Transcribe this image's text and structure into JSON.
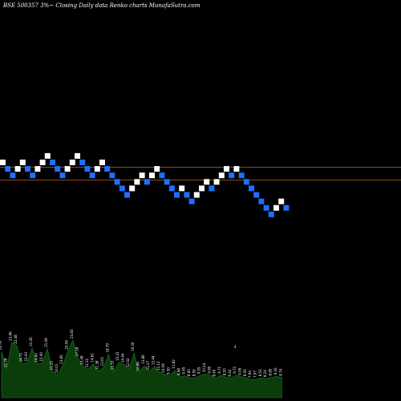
{
  "title": "BSE 500357 3%~ Closing Daily data Renko charts MunafaSutra.com",
  "colors": {
    "background": "#000000",
    "up_brick": "#ffffff",
    "down_brick": "#1e6fff",
    "guide_line": "#b5651d",
    "volume_fill": "#0b3d0b",
    "volume_edge": "#1f7a1f"
  },
  "chart_data": {
    "type": "renko",
    "title": "BSE 500357 3%~ Closing Daily data Renko charts MunafaSutra.com",
    "brick_steps": [
      0,
      -1,
      -2,
      -1,
      0,
      -1,
      -2,
      -1,
      0,
      1,
      0,
      -1,
      -2,
      -1,
      0,
      1,
      0,
      -1,
      -2,
      -1,
      0,
      -1,
      -2,
      -3,
      -4,
      -5,
      -4,
      -3,
      -2,
      -3,
      -2,
      -1,
      -2,
      -3,
      -4,
      -5,
      -4,
      -5,
      -6,
      -5,
      -4,
      -3,
      -4,
      -3,
      -2,
      -1,
      -2,
      -1,
      -2,
      -3,
      -4,
      -5,
      -6,
      -7,
      -8,
      -7,
      -6,
      -7
    ],
    "brick_directions": [
      "up",
      "down",
      "down",
      "up",
      "up",
      "down",
      "down",
      "up",
      "up",
      "up",
      "down",
      "down",
      "down",
      "up",
      "up",
      "up",
      "down",
      "down",
      "down",
      "up",
      "up",
      "down",
      "down",
      "down",
      "down",
      "down",
      "up",
      "up",
      "up",
      "down",
      "up",
      "up",
      "down",
      "down",
      "down",
      "down",
      "up",
      "down",
      "down",
      "up",
      "up",
      "up",
      "down",
      "up",
      "up",
      "up",
      "down",
      "up",
      "down",
      "down",
      "down",
      "down",
      "down",
      "down",
      "down",
      "up",
      "up",
      "down"
    ],
    "reference_levels": [
      -1,
      -3
    ],
    "volume_labels": [
      "19.79",
      "12.38",
      "23.86",
      "22.48",
      "14.71",
      "15.03",
      "21.45",
      "14.60",
      "15.00",
      "21.09",
      "11.25",
      "10.01",
      "13.85",
      "20.09",
      "24.83",
      "17.18",
      "13.49",
      "12.31",
      "14.61",
      "11.38",
      "13.01",
      "18.79",
      "11.33",
      "15.22",
      "14.44",
      "12.43",
      "19.30",
      "10.86",
      "13.86",
      "11.27",
      "13.44",
      "11.12",
      "10.09",
      "9.30",
      "11.82",
      "8.98",
      "9.45",
      "8.60",
      "8.55",
      "9.55",
      "10.24",
      "9.80",
      "8.45",
      "9.71",
      "8.93",
      "8.42",
      "9.72",
      "9.06",
      "8.55",
      "7.94",
      "7.97",
      "8.53",
      "8.24",
      "8.80",
      "9.20",
      "8.74"
    ],
    "volume_values": [
      19.79,
      12.38,
      23.86,
      22.48,
      14.71,
      15.03,
      21.45,
      14.6,
      15.0,
      21.09,
      11.25,
      10.01,
      13.85,
      20.09,
      24.83,
      17.18,
      13.49,
      12.31,
      14.61,
      11.38,
      13.01,
      18.79,
      11.33,
      15.22,
      14.44,
      12.43,
      19.3,
      10.86,
      13.86,
      11.27,
      13.44,
      11.12,
      10.09,
      9.3,
      11.82,
      8.98,
      9.45,
      8.6,
      8.55,
      9.55,
      10.24,
      9.8,
      8.45,
      9.71,
      8.93,
      8.42,
      9.72,
      9.06,
      8.55,
      7.94,
      7.97,
      8.53,
      8.24,
      8.8,
      9.2,
      8.74
    ],
    "volume_marker": "4"
  }
}
